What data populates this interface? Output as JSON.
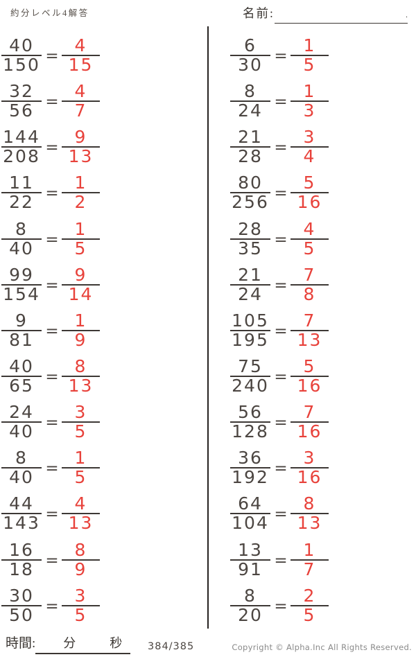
{
  "header": {
    "title": "約分レベル4解答",
    "name_label": "名前:",
    "name_line_end": "."
  },
  "equals": "=",
  "problems": {
    "left": [
      {
        "num": "40",
        "den": "150",
        "ans_num": "4",
        "ans_den": "15"
      },
      {
        "num": "32",
        "den": "56",
        "ans_num": "4",
        "ans_den": "7"
      },
      {
        "num": "144",
        "den": "208",
        "ans_num": "9",
        "ans_den": "13"
      },
      {
        "num": "11",
        "den": "22",
        "ans_num": "1",
        "ans_den": "2"
      },
      {
        "num": "8",
        "den": "40",
        "ans_num": "1",
        "ans_den": "5"
      },
      {
        "num": "99",
        "den": "154",
        "ans_num": "9",
        "ans_den": "14"
      },
      {
        "num": "9",
        "den": "81",
        "ans_num": "1",
        "ans_den": "9"
      },
      {
        "num": "40",
        "den": "65",
        "ans_num": "8",
        "ans_den": "13"
      },
      {
        "num": "24",
        "den": "40",
        "ans_num": "3",
        "ans_den": "5"
      },
      {
        "num": "8",
        "den": "40",
        "ans_num": "1",
        "ans_den": "5"
      },
      {
        "num": "44",
        "den": "143",
        "ans_num": "4",
        "ans_den": "13"
      },
      {
        "num": "16",
        "den": "18",
        "ans_num": "8",
        "ans_den": "9"
      },
      {
        "num": "30",
        "den": "50",
        "ans_num": "3",
        "ans_den": "5"
      }
    ],
    "right": [
      {
        "num": "6",
        "den": "30",
        "ans_num": "1",
        "ans_den": "5"
      },
      {
        "num": "8",
        "den": "24",
        "ans_num": "1",
        "ans_den": "3"
      },
      {
        "num": "21",
        "den": "28",
        "ans_num": "3",
        "ans_den": "4"
      },
      {
        "num": "80",
        "den": "256",
        "ans_num": "5",
        "ans_den": "16"
      },
      {
        "num": "28",
        "den": "35",
        "ans_num": "4",
        "ans_den": "5"
      },
      {
        "num": "21",
        "den": "24",
        "ans_num": "7",
        "ans_den": "8"
      },
      {
        "num": "105",
        "den": "195",
        "ans_num": "7",
        "ans_den": "13"
      },
      {
        "num": "75",
        "den": "240",
        "ans_num": "5",
        "ans_den": "16"
      },
      {
        "num": "56",
        "den": "128",
        "ans_num": "7",
        "ans_den": "16"
      },
      {
        "num": "36",
        "den": "192",
        "ans_num": "3",
        "ans_den": "16"
      },
      {
        "num": "64",
        "den": "104",
        "ans_num": "8",
        "ans_den": "13"
      },
      {
        "num": "13",
        "den": "91",
        "ans_num": "1",
        "ans_den": "7"
      },
      {
        "num": "8",
        "den": "20",
        "ans_num": "2",
        "ans_den": "5"
      }
    ]
  },
  "footer": {
    "time_label": "時間:",
    "minutes_label": "分",
    "seconds_label": "秒",
    "page": "384/385",
    "copyright": "Copyright ©  Alpha.Inc All Rights Reserved."
  },
  "colors": {
    "answer_red": "#e8423b",
    "ink": "#4c4642",
    "bar": "#3d3835"
  }
}
